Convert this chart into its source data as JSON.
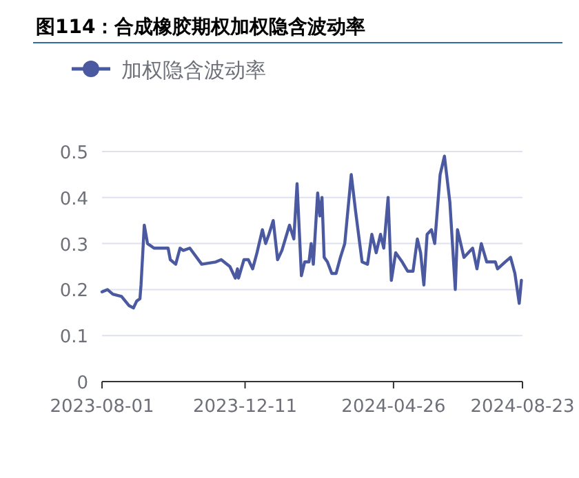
{
  "chart_data": {
    "type": "line",
    "title": "图114：合成橡胶期权加权隐含波动率",
    "x": [
      "2023-08-01",
      "2023-08-06",
      "2023-08-11",
      "2023-08-19",
      "2023-08-26",
      "2023-08-30",
      "2023-09-02",
      "2023-09-05",
      "2023-09-06",
      "2023-09-09",
      "2023-09-12",
      "2023-09-18",
      "2023-10-01",
      "2023-10-03",
      "2023-10-08",
      "2023-10-12",
      "2023-10-15",
      "2023-10-21",
      "2023-11-01",
      "2023-11-14",
      "2023-11-19",
      "2023-11-27",
      "2023-12-02",
      "2023-12-04",
      "2023-12-05",
      "2023-12-10",
      "2023-12-14",
      "2023-12-18",
      "2023-12-22",
      "2023-12-27",
      "2023-12-30",
      "2024-01-02",
      "2024-01-06",
      "2024-01-10",
      "2024-01-14",
      "2024-01-21",
      "2024-01-25",
      "2024-01-28",
      "2024-02-01",
      "2024-02-04",
      "2024-02-08",
      "2024-02-10",
      "2024-02-12",
      "2024-02-16",
      "2024-02-18",
      "2024-02-20",
      "2024-02-22",
      "2024-02-25",
      "2024-02-29",
      "2024-03-04",
      "2024-03-08",
      "2024-03-12",
      "2024-03-18",
      "2024-03-22",
      "2024-03-28",
      "2024-04-02",
      "2024-04-06",
      "2024-04-10",
      "2024-04-14",
      "2024-04-17",
      "2024-04-21",
      "2024-04-24",
      "2024-04-28",
      "2024-05-04",
      "2024-05-09",
      "2024-05-14",
      "2024-05-18",
      "2024-05-21",
      "2024-05-24",
      "2024-05-27",
      "2024-05-31",
      "2024-06-03",
      "2024-06-08",
      "2024-06-12",
      "2024-06-17",
      "2024-06-22",
      "2024-06-24",
      "2024-06-30",
      "2024-07-08",
      "2024-07-12",
      "2024-07-16",
      "2024-07-21",
      "2024-07-29",
      "2024-07-31",
      "2024-08-07",
      "2024-08-12",
      "2024-08-16",
      "2024-08-20",
      "2024-08-22"
    ],
    "series": [
      {
        "name": "加权隐含波动率",
        "color": "#4b5aa0",
        "values": [
          0.195,
          0.2,
          0.19,
          0.185,
          0.165,
          0.16,
          0.175,
          0.18,
          0.21,
          0.34,
          0.3,
          0.29,
          0.29,
          0.265,
          0.255,
          0.29,
          0.285,
          0.29,
          0.255,
          0.26,
          0.265,
          0.25,
          0.225,
          0.245,
          0.225,
          0.265,
          0.265,
          0.245,
          0.28,
          0.33,
          0.3,
          0.32,
          0.35,
          0.265,
          0.285,
          0.34,
          0.31,
          0.43,
          0.23,
          0.26,
          0.26,
          0.3,
          0.255,
          0.41,
          0.36,
          0.4,
          0.27,
          0.26,
          0.235,
          0.235,
          0.27,
          0.3,
          0.45,
          0.37,
          0.26,
          0.255,
          0.32,
          0.28,
          0.32,
          0.29,
          0.4,
          0.22,
          0.28,
          0.26,
          0.24,
          0.24,
          0.31,
          0.28,
          0.21,
          0.32,
          0.33,
          0.3,
          0.45,
          0.49,
          0.39,
          0.2,
          0.33,
          0.27,
          0.29,
          0.245,
          0.3,
          0.26,
          0.26,
          0.245,
          0.26,
          0.27,
          0.235,
          0.17,
          0.22
        ]
      }
    ],
    "xlim": [
      "2023-08-01",
      "2024-08-23"
    ],
    "xticks": [
      "2023-08-01",
      "2023-12-11",
      "2024-04-26",
      "2024-08-23"
    ],
    "ylim": [
      0,
      0.5
    ],
    "yticks": [
      0,
      0.1,
      0.2,
      0.3,
      0.4,
      0.5
    ],
    "grid": "y",
    "legend": "top",
    "marker": "none",
    "line_style": "solid"
  }
}
